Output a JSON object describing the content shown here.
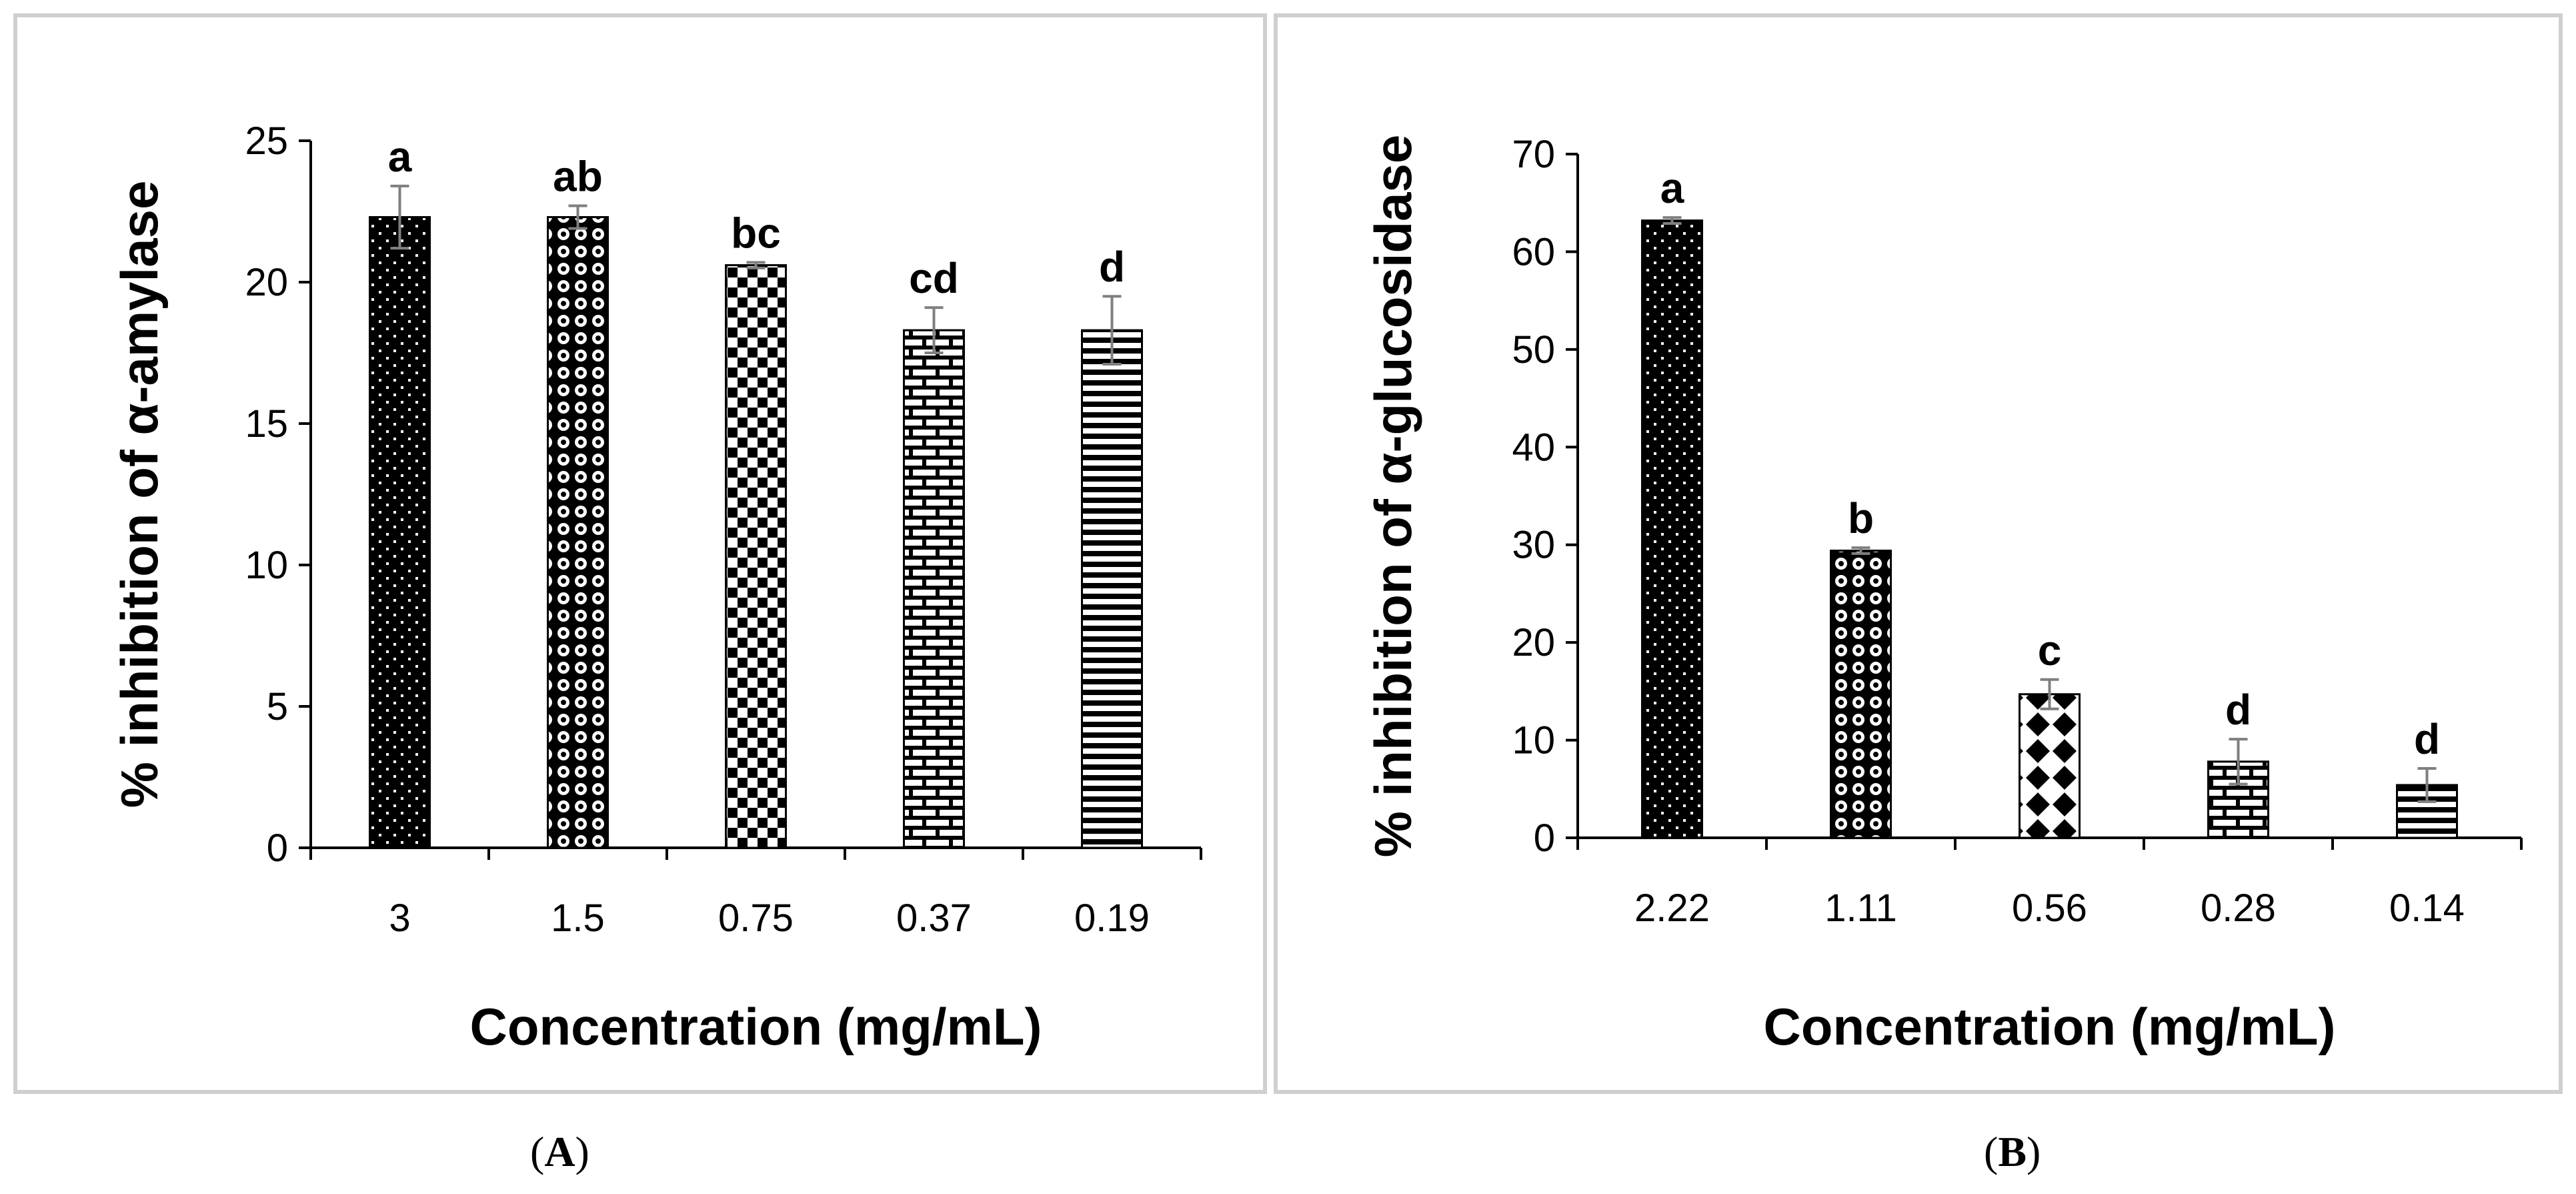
{
  "captions": [
    {
      "open": "(",
      "letter": "A",
      "close": ")"
    },
    {
      "open": "(",
      "letter": "B",
      "close": ")"
    }
  ],
  "chart_data": [
    {
      "type": "bar",
      "title": "",
      "xlabel": "Concentration (mg/mL)",
      "ylabel": "% inhibition of α-amylase",
      "categories": [
        "3",
        "1.5",
        "0.75",
        "0.37",
        "0.19"
      ],
      "values": [
        22.3,
        22.3,
        20.6,
        18.3,
        18.3
      ],
      "errors": [
        1.1,
        0.4,
        0.1,
        0.8,
        1.2
      ],
      "significance_letters": [
        "a",
        "ab",
        "bc",
        "cd",
        "d"
      ],
      "ylim": [
        0,
        25
      ],
      "yticks": [
        0,
        5,
        10,
        15,
        20,
        25
      ],
      "bar_patterns": [
        "dots",
        "circles",
        "checker",
        "brick",
        "hlines"
      ],
      "colors": {
        "bar": "#000000",
        "error_bar": "#7f7f7f",
        "axis": "#000000"
      }
    },
    {
      "type": "bar",
      "title": "",
      "xlabel": "Concentration (mg/mL)",
      "ylabel": "% inhibition of α-glucosidase",
      "categories": [
        "2.22",
        "1.11",
        "0.56",
        "0.28",
        "0.14"
      ],
      "values": [
        63.2,
        29.4,
        14.7,
        7.8,
        5.4
      ],
      "errors": [
        0.3,
        0.3,
        1.5,
        2.3,
        1.7
      ],
      "significance_letters": [
        "a",
        "b",
        "c",
        "d",
        "d"
      ],
      "ylim": [
        0,
        70
      ],
      "yticks": [
        0,
        10,
        20,
        30,
        40,
        50,
        60,
        70
      ],
      "bar_patterns": [
        "dots",
        "circles",
        "diamonds",
        "brick",
        "hlines"
      ],
      "colors": {
        "bar": "#000000",
        "error_bar": "#7f7f7f",
        "axis": "#000000"
      }
    }
  ]
}
